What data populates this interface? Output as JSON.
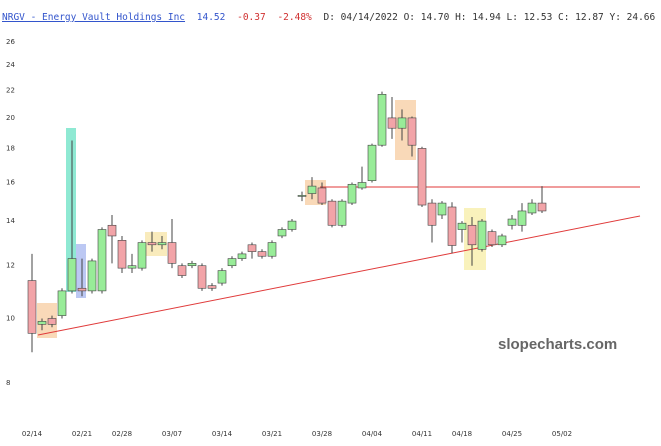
{
  "chart_data": {
    "type": "candlestick",
    "header": {
      "name": "NRGV - Energy Vault Holdings Inc",
      "price": "14.52",
      "change": "-0.37",
      "change_pct": "-2.48%",
      "ohlc": "D: 04/14/2022 O: 14.70 H: 14.94 L: 12.53 C: 12.87 Y: 24.66"
    },
    "watermark": "slopecharts.com",
    "categories": [
      "02/14",
      null,
      null,
      null,
      null,
      "02/21",
      null,
      null,
      null,
      "02/28",
      null,
      null,
      null,
      null,
      "03/07",
      null,
      null,
      null,
      null,
      "03/14",
      null,
      null,
      null,
      null,
      "03/21",
      null,
      null,
      null,
      null,
      "03/28",
      null,
      null,
      null,
      null,
      "04/04",
      null,
      null,
      null,
      null,
      "04/11",
      null,
      null,
      null,
      "04/18",
      null,
      null,
      null,
      null,
      "04/25",
      null,
      null,
      null,
      null,
      "05/02"
    ],
    "open": [
      11.4,
      9.8,
      10.0,
      10.1,
      11.0,
      11.1,
      11.0,
      11.0,
      13.8,
      13.1,
      11.9,
      11.9,
      13.0,
      12.9,
      13.0,
      12.0,
      12.0,
      12.0,
      11.2,
      11.3,
      12.0,
      12.3,
      12.9,
      12.6,
      12.4,
      13.3,
      13.6,
      15.3,
      15.4,
      15.7,
      15.0,
      13.8,
      14.9,
      15.7,
      16.1,
      18.2,
      20.0,
      19.3,
      20.0,
      18.0,
      14.9,
      14.3,
      14.7,
      13.6,
      13.8,
      12.7,
      13.5,
      12.9,
      13.8,
      13.8,
      14.4,
      14.9,
      null,
      null
    ],
    "high": [
      12.5,
      10.0,
      10.1,
      11.1,
      18.5,
      12.3,
      12.3,
      13.7,
      14.3,
      13.3,
      12.5,
      13.1,
      13.5,
      13.3,
      14.1,
      12.1,
      12.2,
      12.1,
      11.3,
      11.9,
      12.4,
      12.6,
      13.0,
      12.7,
      13.1,
      13.7,
      14.1,
      15.5,
      16.3,
      16.0,
      15.1,
      15.1,
      16.0,
      16.9,
      18.3,
      21.9,
      21.5,
      20.6,
      20.1,
      18.1,
      15.1,
      15.0,
      14.94,
      14.0,
      14.2,
      14.1,
      13.6,
      13.4,
      14.3,
      14.9,
      15.1,
      15.8,
      null,
      null
    ],
    "low": [
      8.9,
      9.6,
      9.7,
      10.0,
      10.9,
      10.8,
      10.9,
      10.9,
      12.1,
      11.7,
      11.7,
      11.8,
      12.6,
      12.7,
      11.9,
      11.5,
      11.9,
      11.0,
      11.0,
      11.2,
      11.9,
      12.2,
      12.3,
      12.3,
      12.3,
      13.2,
      13.5,
      15.0,
      15.1,
      14.8,
      13.7,
      13.7,
      14.8,
      15.6,
      16.0,
      18.1,
      18.6,
      18.5,
      17.5,
      14.7,
      13.0,
      14.1,
      12.53,
      13.0,
      12.0,
      12.6,
      12.8,
      12.8,
      13.6,
      13.5,
      14.3,
      14.4,
      null,
      null
    ],
    "close": [
      9.5,
      9.9,
      9.8,
      11.0,
      12.3,
      11.0,
      12.2,
      13.6,
      13.3,
      11.9,
      12.0,
      13.0,
      12.9,
      13.0,
      12.1,
      11.6,
      12.1,
      11.1,
      11.1,
      11.8,
      12.3,
      12.5,
      12.6,
      12.4,
      13.0,
      13.6,
      14.0,
      15.3,
      15.8,
      14.9,
      13.8,
      15.0,
      15.9,
      16.0,
      18.2,
      21.7,
      19.3,
      20.0,
      18.2,
      14.8,
      13.8,
      14.9,
      12.87,
      13.9,
      12.9,
      14.0,
      12.9,
      13.3,
      14.1,
      14.5,
      14.9,
      14.5,
      null,
      null
    ],
    "up_color": "#98ec98",
    "down_color": "#f2a4a8",
    "log_scale": true,
    "ylim": [
      6.92,
      27.1
    ],
    "yticks": [
      8,
      10,
      12,
      14,
      16,
      18,
      20,
      22,
      24,
      26
    ],
    "grid": false
  }
}
